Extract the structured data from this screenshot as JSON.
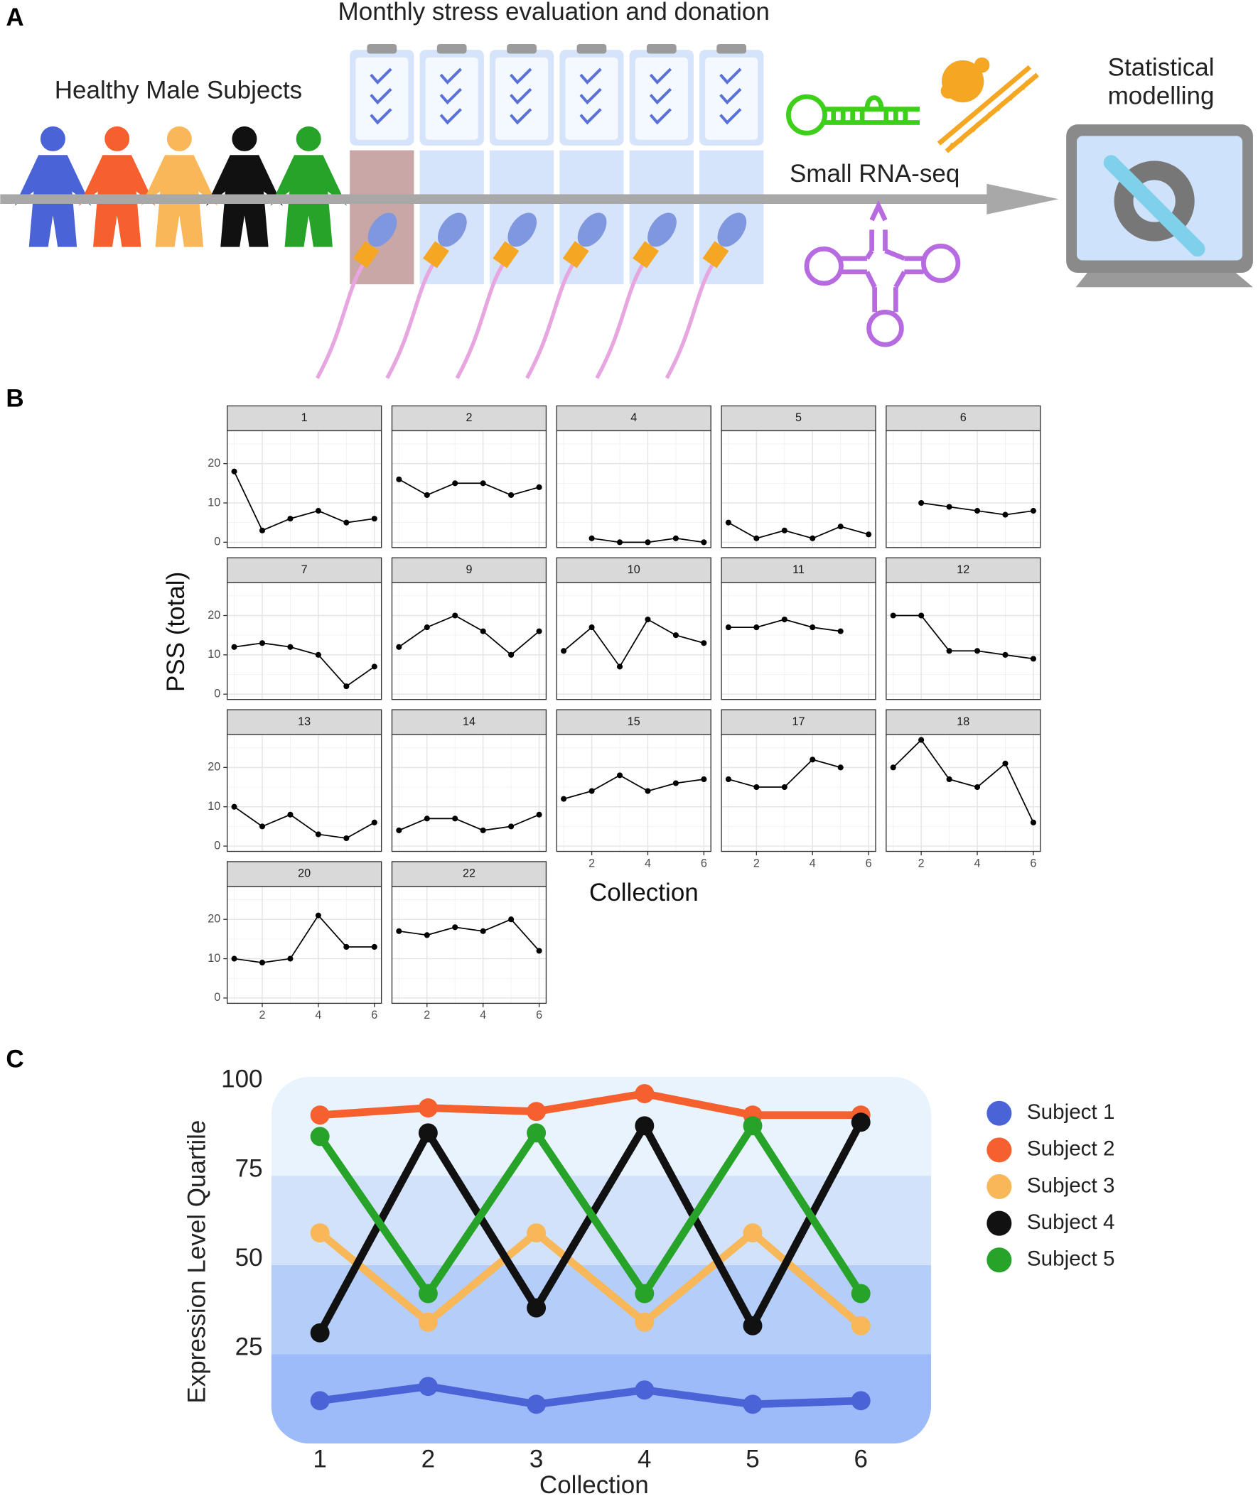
{
  "panel_labels": [
    "A",
    "B",
    "C"
  ],
  "diagram": {
    "title": "Monthly stress evaluation and donation",
    "subjects_label": "Healthy Male Subjects",
    "sequencing_label": "Small RNA-seq",
    "modelling_label": [
      "Statistical",
      "modelling"
    ]
  },
  "chart_data": [
    {
      "type": "facet_line",
      "ylabel": "PSS (total)",
      "xlabel": "Collection",
      "color": "#000000",
      "x": [
        1,
        2,
        3,
        4,
        5,
        6
      ],
      "xlim": [
        0.75,
        6.25
      ],
      "ylim": [
        -1.35,
        28.35
      ],
      "xticks": [
        2,
        4,
        6
      ],
      "yticks": [
        0,
        10,
        20
      ],
      "minor_xticks": [
        1,
        3,
        5
      ],
      "minor_yticks": [
        5,
        15,
        25
      ],
      "grid": true,
      "series": [
        {
          "name": "1",
          "values": [
            18,
            3,
            6,
            8,
            5,
            6
          ]
        },
        {
          "name": "2",
          "values": [
            16,
            12,
            15,
            15,
            12,
            14
          ]
        },
        {
          "name": "4",
          "values": [
            null,
            1,
            0,
            0,
            1,
            0
          ]
        },
        {
          "name": "5",
          "values": [
            5,
            1,
            3,
            1,
            4,
            2
          ]
        },
        {
          "name": "6",
          "values": [
            null,
            10,
            9,
            8,
            7,
            8
          ]
        },
        {
          "name": "7",
          "values": [
            12,
            13,
            12,
            10,
            2,
            7
          ]
        },
        {
          "name": "9",
          "values": [
            12,
            17,
            20,
            16,
            10,
            16
          ]
        },
        {
          "name": "10",
          "values": [
            11,
            17,
            7,
            19,
            15,
            13
          ]
        },
        {
          "name": "11",
          "values": [
            17,
            17,
            19,
            17,
            16,
            null
          ]
        },
        {
          "name": "12",
          "values": [
            20,
            20,
            11,
            11,
            10,
            9
          ]
        },
        {
          "name": "13",
          "values": [
            10,
            5,
            8,
            3,
            2,
            6
          ]
        },
        {
          "name": "14",
          "values": [
            4,
            7,
            7,
            4,
            5,
            8
          ]
        },
        {
          "name": "15",
          "values": [
            12,
            14,
            18,
            14,
            16,
            17
          ]
        },
        {
          "name": "17",
          "values": [
            17,
            15,
            15,
            22,
            20,
            null
          ]
        },
        {
          "name": "18",
          "values": [
            20,
            27,
            17,
            15,
            21,
            6
          ]
        },
        {
          "name": "20",
          "values": [
            10,
            9,
            10,
            21,
            13,
            13
          ]
        },
        {
          "name": "22",
          "values": [
            17,
            16,
            18,
            17,
            20,
            12
          ]
        }
      ]
    },
    {
      "type": "line",
      "ylabel": "Expression Level Quartile",
      "xlabel": "Collection",
      "x": [
        1,
        2,
        3,
        4,
        5,
        6
      ],
      "xlim": [
        0.55,
        6.65
      ],
      "ylim": [
        0,
        100
      ],
      "xticks": [
        1,
        2,
        3,
        4,
        5,
        6
      ],
      "yticks": [
        25,
        50,
        75,
        100
      ],
      "legend": "right",
      "series": [
        {
          "name": "Subject 1",
          "color": "#4a63d6",
          "values": [
            12,
            16,
            11,
            15,
            11,
            12
          ]
        },
        {
          "name": "Subject 2",
          "color": "#f5602e",
          "values": [
            92,
            94,
            93,
            98,
            92,
            92
          ]
        },
        {
          "name": "Subject 3",
          "color": "#f8b85a",
          "values": [
            59,
            34,
            59,
            34,
            59,
            33
          ]
        },
        {
          "name": "Subject 4",
          "color": "#111111",
          "values": [
            31,
            87,
            38,
            89,
            33,
            90
          ]
        },
        {
          "name": "Subject 5",
          "color": "#27a32a",
          "values": [
            86,
            42,
            87,
            42,
            89,
            42
          ]
        }
      ]
    }
  ]
}
